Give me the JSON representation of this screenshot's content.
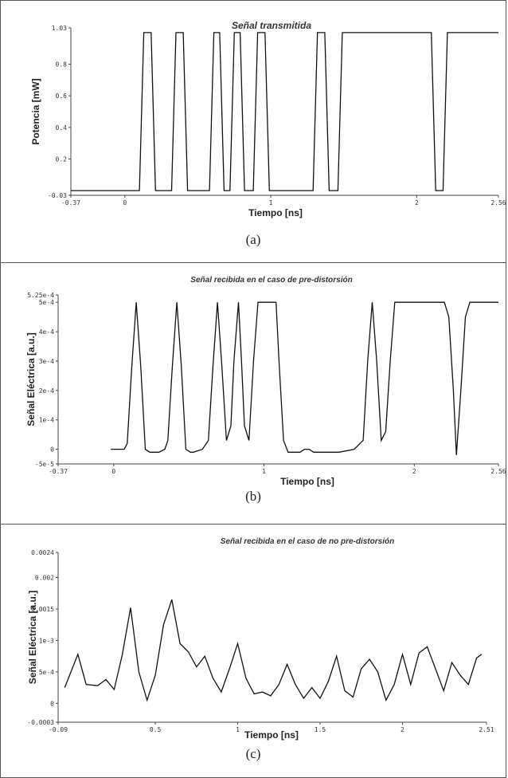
{
  "chart_data": [
    {
      "type": "line",
      "title": "Señal transmitida",
      "xlabel": "Tiempo [ns]",
      "ylabel": "Potencia [mW]",
      "xlim": [
        -0.37,
        2.56
      ],
      "ylim": [
        -0.03,
        1.03
      ],
      "xticks": [
        "-0.37",
        "0",
        "1",
        "2",
        "2.56"
      ],
      "yticks": [
        "1.03",
        "0.8",
        "0.6",
        "0.4",
        "0.2",
        "-0.03"
      ],
      "caption": "(a)",
      "series": [
        {
          "x": [
            -0.37,
            0.1,
            0.13,
            0.18,
            0.21,
            0.32,
            0.35,
            0.4,
            0.43,
            0.58,
            0.61,
            0.65,
            0.68,
            0.72,
            0.75,
            0.79,
            0.82,
            0.88,
            0.91,
            0.96,
            0.99,
            1.29,
            1.32,
            1.37,
            1.4,
            1.46,
            1.49,
            1.54,
            1.57,
            2.1,
            2.13,
            2.18,
            2.21,
            2.56
          ],
          "y": [
            0,
            0,
            1,
            1,
            0,
            0,
            1,
            1,
            0,
            0,
            1,
            1,
            0,
            0,
            1,
            1,
            0,
            0,
            1,
            1,
            0,
            0,
            1,
            1,
            0,
            0,
            1,
            1,
            1,
            1,
            0,
            0,
            1,
            1
          ]
        }
      ]
    },
    {
      "type": "line",
      "title": "Señal recibida en el caso de pre-distorsión",
      "xlabel": "Tiempo [ns]",
      "ylabel": "Señal Eléctrica [a.u.]",
      "xlim": [
        -0.37,
        2.56
      ],
      "ylim": [
        -5e-05,
        0.000525
      ],
      "xticks": [
        "-0.37",
        "0",
        "1",
        "2",
        "2.56"
      ],
      "yticks": [
        "5.25e-4",
        "5e-4",
        "4e-4",
        "3e-4",
        "2e-4",
        "1e-4",
        "0",
        "-5e-5"
      ],
      "caption": "(b)",
      "series": [
        {
          "x": [
            -0.02,
            0.07,
            0.09,
            0.12,
            0.15,
            0.18,
            0.21,
            0.24,
            0.3,
            0.34,
            0.36,
            0.39,
            0.42,
            0.45,
            0.48,
            0.51,
            0.53,
            0.59,
            0.63,
            0.66,
            0.69,
            0.72,
            0.75,
            0.78,
            0.8,
            0.83,
            0.85,
            0.87,
            0.9,
            0.93,
            0.96,
            0.99,
            1.02,
            1.05,
            1.08,
            1.1,
            1.13,
            1.16,
            1.24,
            1.27,
            1.3,
            1.33,
            1.4,
            1.5,
            1.6,
            1.66,
            1.69,
            1.72,
            1.75,
            1.78,
            1.81,
            1.84,
            1.87,
            1.9,
            1.93,
            2.2,
            2.23,
            2.26,
            2.28,
            2.31,
            2.34,
            2.37,
            2.4,
            2.43,
            2.47,
            2.56
          ],
          "y": [
            0,
            0,
            2e-05,
            0.00028,
            0.0005,
            0.00028,
            0,
            -1e-05,
            -1e-05,
            0,
            3e-05,
            0.00028,
            0.0005,
            0.00028,
            0,
            -1e-05,
            -1e-05,
            0,
            3e-05,
            0.00028,
            0.0005,
            0.00028,
            3e-05,
            8e-05,
            0.0003,
            0.0005,
            0.0003,
            8e-05,
            3e-05,
            0.0003,
            0.0005,
            0.0005,
            0.0005,
            0.0005,
            0.0005,
            0.0003,
            3e-05,
            -1e-05,
            -1e-05,
            0,
            0,
            -1e-05,
            -1e-05,
            -1e-05,
            0,
            3e-05,
            0.0003,
            0.0005,
            0.0003,
            3e-05,
            6e-05,
            0.0003,
            0.0005,
            0.0005,
            0.0005,
            0.0005,
            0.00045,
            0.0002,
            -2e-05,
            0.0002,
            0.00045,
            0.0005,
            0.0005,
            0.0005,
            0.0005,
            0.0005
          ]
        }
      ]
    },
    {
      "type": "line",
      "title": "Señal recibida en el caso de no pre-distorsión",
      "xlabel": "Tiempo [ns]",
      "ylabel": "Señal Eléctrica [a.u.]",
      "xlim": [
        -0.09,
        2.51
      ],
      "ylim": [
        -0.0003,
        0.0024
      ],
      "xticks": [
        "-0.09",
        "0.5",
        "1",
        "1.5",
        "2",
        "2.51"
      ],
      "yticks": [
        "0.0024",
        "0.002",
        "0.0015",
        "1e-3",
        "5e-4",
        "0",
        "-0.0003"
      ],
      "caption": "(c)",
      "series": [
        {
          "x": [
            -0.05,
            0.03,
            0.08,
            0.15,
            0.2,
            0.25,
            0.3,
            0.35,
            0.4,
            0.45,
            0.5,
            0.55,
            0.6,
            0.65,
            0.7,
            0.75,
            0.8,
            0.85,
            0.9,
            0.95,
            1.0,
            1.05,
            1.1,
            1.15,
            1.2,
            1.25,
            1.3,
            1.35,
            1.4,
            1.45,
            1.5,
            1.55,
            1.6,
            1.65,
            1.7,
            1.75,
            1.8,
            1.85,
            1.9,
            1.95,
            2.0,
            2.05,
            2.1,
            2.15,
            2.2,
            2.25,
            2.3,
            2.35,
            2.4,
            2.45,
            2.48
          ],
          "y": [
            0.00025,
            0.00078,
            0.0003,
            0.00028,
            0.00038,
            0.00022,
            0.00078,
            0.00152,
            0.0005,
            5e-05,
            0.00045,
            0.00125,
            0.00165,
            0.00095,
            0.00082,
            0.00058,
            0.00075,
            0.0004,
            0.00018,
            0.00055,
            0.00095,
            0.0004,
            0.00015,
            0.00018,
            0.00012,
            0.0003,
            0.00062,
            0.0003,
            8e-05,
            0.00025,
            8e-05,
            0.00035,
            0.00075,
            0.0002,
            0.0001,
            0.00055,
            0.0007,
            0.0005,
            5e-05,
            0.0003,
            0.00078,
            0.0003,
            0.0008,
            0.0009,
            0.00055,
            0.0002,
            0.00065,
            0.00045,
            0.0003,
            0.00072,
            0.00078
          ]
        }
      ]
    }
  ]
}
